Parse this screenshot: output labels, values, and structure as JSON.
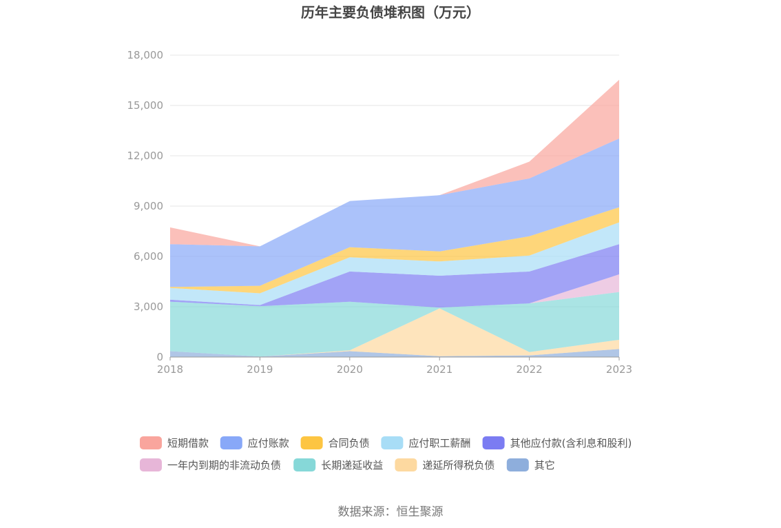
{
  "chart_data": {
    "type": "area",
    "stacked": true,
    "title": "历年主要负债堆积图（万元）",
    "source": "数据来源：恒生聚源",
    "categories": [
      "2018",
      "2019",
      "2020",
      "2021",
      "2022",
      "2023"
    ],
    "ylim": [
      0,
      18000
    ],
    "yticks": [
      0,
      3000,
      6000,
      9000,
      12000,
      15000,
      18000
    ],
    "ytick_labels": [
      "0",
      "3,000",
      "6,000",
      "9,000",
      "12,000",
      "15,000",
      "18,000"
    ],
    "grid": true,
    "legend_position": "bottom",
    "series": [
      {
        "name": "其它",
        "color": "#8eaedc",
        "values": [
          350,
          30,
          350,
          50,
          100,
          480
        ]
      },
      {
        "name": "递延所得税负债",
        "color": "#fdd9a0",
        "values": [
          0,
          0,
          50,
          2850,
          200,
          550
        ]
      },
      {
        "name": "长期递延收益",
        "color": "#86d8d8",
        "values": [
          2950,
          3000,
          2900,
          50,
          2900,
          2850
        ]
      },
      {
        "name": "一年内到期的非流动负债",
        "color": "#e7b6d8",
        "values": [
          0,
          0,
          0,
          0,
          0,
          1050
        ]
      },
      {
        "name": "其他应付款(含利息和股利)",
        "color": "#7b7cf2",
        "values": [
          120,
          70,
          1800,
          1900,
          1900,
          1800
        ]
      },
      {
        "name": "应付职工薪酬",
        "color": "#a8ddf6",
        "values": [
          700,
          700,
          850,
          850,
          950,
          1300
        ]
      },
      {
        "name": "合同负债",
        "color": "#fdc542",
        "values": [
          60,
          450,
          600,
          600,
          1150,
          900
        ]
      },
      {
        "name": "应付账款",
        "color": "#88a8f8",
        "values": [
          2550,
          2350,
          2750,
          3350,
          3450,
          4100
        ]
      },
      {
        "name": "短期借款",
        "color": "#f9a59d",
        "values": [
          1000,
          0,
          0,
          0,
          1000,
          3500
        ]
      }
    ],
    "legend_order": [
      "短期借款",
      "应付账款",
      "合同负债",
      "应付职工薪酬",
      "其他应付款(含利息和股利)",
      "一年内到期的非流动负债",
      "长期递延收益",
      "递延所得税负债",
      "其它"
    ]
  }
}
